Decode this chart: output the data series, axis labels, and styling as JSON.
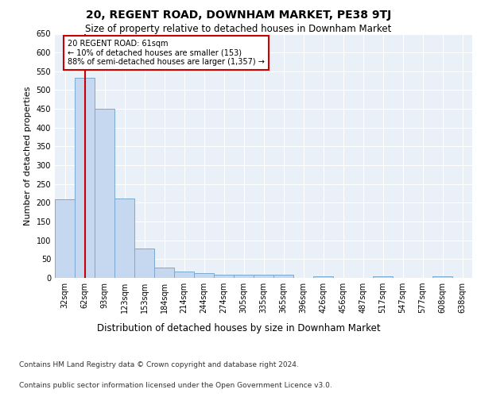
{
  "title": "20, REGENT ROAD, DOWNHAM MARKET, PE38 9TJ",
  "subtitle": "Size of property relative to detached houses in Downham Market",
  "xlabel": "Distribution of detached houses by size in Downham Market",
  "ylabel": "Number of detached properties",
  "footnote1": "Contains HM Land Registry data © Crown copyright and database right 2024.",
  "footnote2": "Contains public sector information licensed under the Open Government Licence v3.0.",
  "categories": [
    "32sqm",
    "62sqm",
    "93sqm",
    "123sqm",
    "153sqm",
    "184sqm",
    "214sqm",
    "244sqm",
    "274sqm",
    "305sqm",
    "335sqm",
    "365sqm",
    "396sqm",
    "426sqm",
    "456sqm",
    "487sqm",
    "517sqm",
    "547sqm",
    "577sqm",
    "608sqm",
    "638sqm"
  ],
  "values": [
    210,
    533,
    450,
    212,
    78,
    27,
    16,
    13,
    8,
    8,
    8,
    8,
    0,
    5,
    0,
    0,
    5,
    0,
    0,
    5,
    0
  ],
  "bar_color": "#c5d8ef",
  "bar_edge_color": "#7aaad0",
  "highlight_bar_index": 1,
  "vline_color": "#cc0000",
  "annotation_text": "20 REGENT ROAD: 61sqm\n← 10% of detached houses are smaller (153)\n88% of semi-detached houses are larger (1,357) →",
  "annotation_box_color": "#cc0000",
  "ylim": [
    0,
    650
  ],
  "yticks": [
    0,
    50,
    100,
    150,
    200,
    250,
    300,
    350,
    400,
    450,
    500,
    550,
    600,
    650
  ],
  "plot_bg_color": "#eaf0f8",
  "title_fontsize": 10,
  "subtitle_fontsize": 8.5,
  "xlabel_fontsize": 8.5,
  "ylabel_fontsize": 8,
  "tick_fontsize": 7,
  "annotation_fontsize": 7,
  "footnote_fontsize": 6.5
}
